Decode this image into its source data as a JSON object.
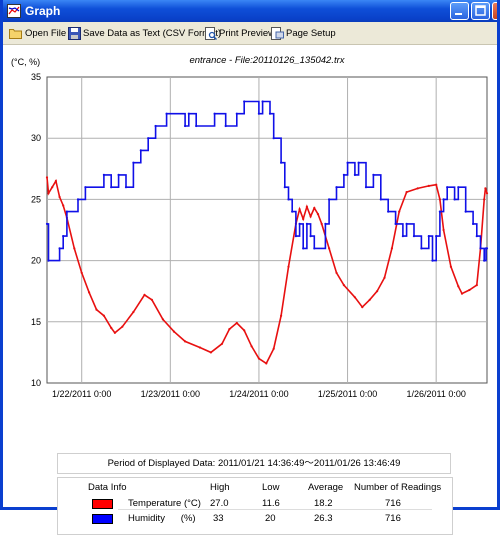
{
  "window": {
    "title": "Graph"
  },
  "toolbar": {
    "open_file": "Open File",
    "save_text": "Save Data as Text (CSV Format)",
    "print_preview": "Print Preview",
    "page_setup": "Page Setup"
  },
  "chart_data": {
    "type": "line",
    "title": "entrance - File:20110126_135042.trx",
    "ylabel": "(°C, %)",
    "ylim": [
      10,
      35
    ],
    "yticks": [
      "10",
      "15",
      "20",
      "25",
      "30",
      "35"
    ],
    "xlim": [
      "2011-01-21 14:36",
      "2011-01-26 13:46"
    ],
    "xticks": [
      "1/22/2011 0:00",
      "1/23/2011 0:00",
      "1/24/2011 0:00",
      "1/25/2011 0:00",
      "1/26/2011 0:00"
    ],
    "grid": true,
    "series": [
      {
        "name": "Temperature (°C)",
        "color": "#e81010",
        "points": [
          [
            "2011-01-21 14:36",
            26.8
          ],
          [
            "2011-01-21 15:00",
            25.5
          ],
          [
            "2011-01-21 16:00",
            26.0
          ],
          [
            "2011-01-21 17:00",
            26.5
          ],
          [
            "2011-01-21 18:00",
            25.2
          ],
          [
            "2011-01-21 19:00",
            24.5
          ],
          [
            "2011-01-21 20:00",
            23.5
          ],
          [
            "2011-01-21 22:00",
            21.0
          ],
          [
            "2011-01-22 00:00",
            19.0
          ],
          [
            "2011-01-22 02:00",
            17.4
          ],
          [
            "2011-01-22 04:00",
            16.0
          ],
          [
            "2011-01-22 06:00",
            15.5
          ],
          [
            "2011-01-22 08:00",
            14.5
          ],
          [
            "2011-01-22 09:00",
            14.1
          ],
          [
            "2011-01-22 11:00",
            14.6
          ],
          [
            "2011-01-22 14:00",
            15.8
          ],
          [
            "2011-01-22 17:00",
            17.2
          ],
          [
            "2011-01-22 19:00",
            16.8
          ],
          [
            "2011-01-22 22:00",
            15.2
          ],
          [
            "2011-01-23 01:00",
            14.2
          ],
          [
            "2011-01-23 04:00",
            13.4
          ],
          [
            "2011-01-23 08:00",
            12.9
          ],
          [
            "2011-01-23 11:00",
            12.5
          ],
          [
            "2011-01-23 14:00",
            13.2
          ],
          [
            "2011-01-23 16:00",
            14.4
          ],
          [
            "2011-01-23 18:00",
            14.9
          ],
          [
            "2011-01-23 20:00",
            14.3
          ],
          [
            "2011-01-23 22:00",
            13.0
          ],
          [
            "2011-01-24 00:00",
            12.0
          ],
          [
            "2011-01-24 02:00",
            11.6
          ],
          [
            "2011-01-24 04:00",
            12.8
          ],
          [
            "2011-01-24 06:00",
            15.5
          ],
          [
            "2011-01-24 08:00",
            19.5
          ],
          [
            "2011-01-24 10:00",
            23.0
          ],
          [
            "2011-01-24 11:00",
            24.2
          ],
          [
            "2011-01-24 12:00",
            23.4
          ],
          [
            "2011-01-24 13:00",
            24.4
          ],
          [
            "2011-01-24 14:00",
            23.6
          ],
          [
            "2011-01-24 15:00",
            24.3
          ],
          [
            "2011-01-24 16:00",
            23.8
          ],
          [
            "2011-01-24 17:00",
            23.0
          ],
          [
            "2011-01-24 19:00",
            21.0
          ],
          [
            "2011-01-24 21:00",
            19.0
          ],
          [
            "2011-01-24 23:00",
            18.0
          ],
          [
            "2011-01-25 02:00",
            17.0
          ],
          [
            "2011-01-25 04:00",
            16.2
          ],
          [
            "2011-01-25 06:00",
            16.8
          ],
          [
            "2011-01-25 08:00",
            17.5
          ],
          [
            "2011-01-25 10:00",
            18.6
          ],
          [
            "2011-01-25 12:00",
            21.0
          ],
          [
            "2011-01-25 14:00",
            24.0
          ],
          [
            "2011-01-25 16:00",
            25.6
          ],
          [
            "2011-01-25 19:00",
            25.9
          ],
          [
            "2011-01-25 22:00",
            26.1
          ],
          [
            "2011-01-26 00:00",
            26.2
          ],
          [
            "2011-01-26 01:00",
            25.0
          ],
          [
            "2011-01-26 02:00",
            22.5
          ],
          [
            "2011-01-26 04:00",
            19.5
          ],
          [
            "2011-01-26 06:00",
            17.9
          ],
          [
            "2011-01-26 07:00",
            17.3
          ],
          [
            "2011-01-26 09:00",
            17.6
          ],
          [
            "2011-01-26 11:00",
            18.0
          ],
          [
            "2011-01-26 12:00",
            21.0
          ],
          [
            "2011-01-26 13:00",
            25.0
          ],
          [
            "2011-01-26 13:20",
            25.9
          ],
          [
            "2011-01-26 13:46",
            25.5
          ]
        ]
      },
      {
        "name": "Humidity (%)",
        "color": "#1010e8",
        "step": true,
        "points": [
          [
            "2011-01-21 14:36",
            23
          ],
          [
            "2011-01-21 15:00",
            20
          ],
          [
            "2011-01-21 18:00",
            21
          ],
          [
            "2011-01-21 19:00",
            22
          ],
          [
            "2011-01-21 20:00",
            24
          ],
          [
            "2011-01-21 23:00",
            25
          ],
          [
            "2011-01-22 01:00",
            26
          ],
          [
            "2011-01-22 06:00",
            27
          ],
          [
            "2011-01-22 08:00",
            26
          ],
          [
            "2011-01-22 10:00",
            27
          ],
          [
            "2011-01-22 12:00",
            26
          ],
          [
            "2011-01-22 14:00",
            28
          ],
          [
            "2011-01-22 16:00",
            29
          ],
          [
            "2011-01-22 18:00",
            30
          ],
          [
            "2011-01-22 20:00",
            31
          ],
          [
            "2011-01-22 23:00",
            32
          ],
          [
            "2011-01-23 04:00",
            31
          ],
          [
            "2011-01-23 05:00",
            32
          ],
          [
            "2011-01-23 07:00",
            31
          ],
          [
            "2011-01-23 12:00",
            32
          ],
          [
            "2011-01-23 15:00",
            31
          ],
          [
            "2011-01-23 18:00",
            32
          ],
          [
            "2011-01-23 20:00",
            33
          ],
          [
            "2011-01-24 00:00",
            32
          ],
          [
            "2011-01-24 01:00",
            33
          ],
          [
            "2011-01-24 03:00",
            32
          ],
          [
            "2011-01-24 04:00",
            30
          ],
          [
            "2011-01-24 06:00",
            28
          ],
          [
            "2011-01-24 07:00",
            26
          ],
          [
            "2011-01-24 08:00",
            25
          ],
          [
            "2011-01-24 09:00",
            24
          ],
          [
            "2011-01-24 10:00",
            22
          ],
          [
            "2011-01-24 11:00",
            23
          ],
          [
            "2011-01-24 12:00",
            21
          ],
          [
            "2011-01-24 13:00",
            23
          ],
          [
            "2011-01-24 14:00",
            22
          ],
          [
            "2011-01-24 15:00",
            21
          ],
          [
            "2011-01-24 18:00",
            23
          ],
          [
            "2011-01-24 19:00",
            25
          ],
          [
            "2011-01-24 21:00",
            26
          ],
          [
            "2011-01-24 23:00",
            27
          ],
          [
            "2011-01-25 00:00",
            28
          ],
          [
            "2011-01-25 02:00",
            27
          ],
          [
            "2011-01-25 03:00",
            28
          ],
          [
            "2011-01-25 05:00",
            26
          ],
          [
            "2011-01-25 07:00",
            27
          ],
          [
            "2011-01-25 09:00",
            25
          ],
          [
            "2011-01-25 11:00",
            24
          ],
          [
            "2011-01-25 13:00",
            23
          ],
          [
            "2011-01-25 15:00",
            22
          ],
          [
            "2011-01-25 16:00",
            23
          ],
          [
            "2011-01-25 18:00",
            22
          ],
          [
            "2011-01-25 20:00",
            21
          ],
          [
            "2011-01-25 22:00",
            22
          ],
          [
            "2011-01-25 23:00",
            20
          ],
          [
            "2011-01-26 00:00",
            22
          ],
          [
            "2011-01-26 01:00",
            24
          ],
          [
            "2011-01-26 02:00",
            25
          ],
          [
            "2011-01-26 03:00",
            26
          ],
          [
            "2011-01-26 05:00",
            25
          ],
          [
            "2011-01-26 06:00",
            26
          ],
          [
            "2011-01-26 08:00",
            24
          ],
          [
            "2011-01-26 10:00",
            23
          ],
          [
            "2011-01-26 11:00",
            22
          ],
          [
            "2011-01-26 12:00",
            21
          ],
          [
            "2011-01-26 13:00",
            20
          ],
          [
            "2011-01-26 13:30",
            21
          ],
          [
            "2011-01-26 13:46",
            21
          ]
        ]
      }
    ]
  },
  "period": "Period of Displayed Data: 2011/01/21 14:36:49～2011/01/26 13:46:49",
  "table": {
    "headers": {
      "data_info": "Data Info",
      "high": "High",
      "low": "Low",
      "average": "Average",
      "readings": "Number of Readings"
    },
    "rows": [
      {
        "label": "Temperature (°C)",
        "color": "#ff0000",
        "high": "27.0",
        "low": "11.6",
        "average": "18.2",
        "readings": "716"
      },
      {
        "label": "Humidity      (%)",
        "color": "#0000ff",
        "high": "33",
        "low": "20",
        "average": "26.3",
        "readings": "716"
      }
    ]
  }
}
